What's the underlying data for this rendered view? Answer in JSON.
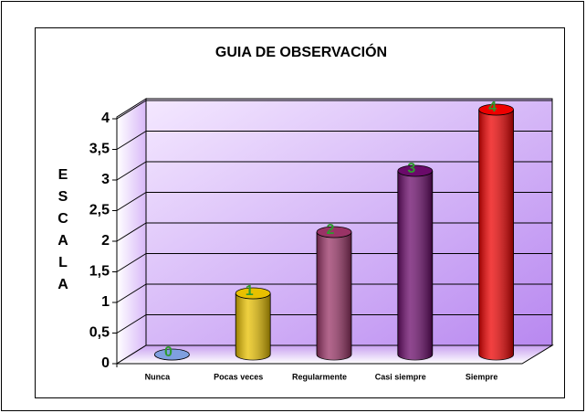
{
  "chart_data": {
    "type": "bar",
    "title": "GUIA DE OBSERVACIÓN",
    "y_label": "ESCALA",
    "categories": [
      "Nunca",
      "Pocas veces",
      "Regularmente",
      "Casi siempre",
      "Siempre"
    ],
    "values": [
      0,
      1,
      2,
      3,
      4
    ],
    "colors": [
      "#7f9fdf",
      "#e8c000",
      "#993366",
      "#6a0a6a",
      "#ee0000"
    ],
    "ylim": [
      0,
      4
    ],
    "yticks": [
      0,
      {
        "value": 0.5,
        "label": "0,5"
      },
      1,
      {
        "value": 1.5,
        "label": "1,5"
      },
      2,
      {
        "value": 2.5,
        "label": "2,5"
      },
      3,
      {
        "value": 3.5,
        "label": "3,5"
      },
      4
    ],
    "grid": true
  }
}
